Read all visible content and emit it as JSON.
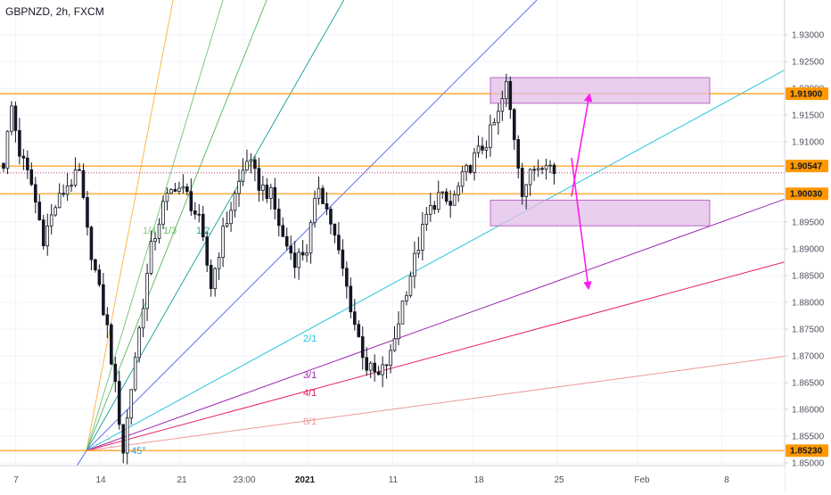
{
  "header": {
    "title": "GBPNZD, 2h, FXCM"
  },
  "colors": {
    "candle": "#131722",
    "level_line": "#ff9800",
    "badge_bg": "#ff9800",
    "zone_fill": "#e1bee7",
    "zone_stroke": "#ba68c8",
    "arrow": "#ff1cf0",
    "grid": "#f0f3fa",
    "axis": "#d1d4dc"
  },
  "chart_data": {
    "type": "candlestick",
    "symbol": "GBPNZD",
    "timeframe": "2h",
    "source": "FXCM",
    "y_range": [
      1.8495,
      1.9365
    ],
    "y_ticks": [
      "1.93000",
      "1.92500",
      "1.92000",
      "1.91500",
      "1.91000",
      "1.90500",
      "1.90000",
      "1.89500",
      "1.89000",
      "1.88500",
      "1.88000",
      "1.87500",
      "1.87000",
      "1.86500",
      "1.86000",
      "1.85500",
      "1.85000"
    ],
    "x_ticks": [
      {
        "label": "7",
        "bold": false
      },
      {
        "label": "14",
        "bold": false
      },
      {
        "label": "21",
        "bold": false
      },
      {
        "label": "23:00",
        "bold": false
      },
      {
        "label": "2021",
        "bold": true
      },
      {
        "label": "11",
        "bold": false
      },
      {
        "label": "18",
        "bold": false
      },
      {
        "label": "25",
        "bold": false
      },
      {
        "label": "Feb",
        "bold": false
      },
      {
        "label": "8",
        "bold": false
      }
    ],
    "price_path_anchors": [
      [
        0,
        1.906
      ],
      [
        2,
        1.9165
      ],
      [
        4,
        1.908
      ],
      [
        7,
        1.902
      ],
      [
        10,
        1.892
      ],
      [
        13,
        1.898
      ],
      [
        16,
        1.902
      ],
      [
        19,
        1.904
      ],
      [
        21,
        1.893
      ],
      [
        24,
        1.882
      ],
      [
        26,
        1.875
      ],
      [
        28,
        1.864
      ],
      [
        30,
        1.8523
      ],
      [
        33,
        1.87
      ],
      [
        37,
        1.89
      ],
      [
        40,
        1.898
      ],
      [
        43,
        1.902
      ],
      [
        46,
        1.9
      ],
      [
        49,
        1.895
      ],
      [
        52,
        1.883
      ],
      [
        55,
        1.893
      ],
      [
        58,
        1.9
      ],
      [
        61,
        1.907
      ],
      [
        64,
        1.902
      ],
      [
        67,
        1.9
      ],
      [
        70,
        1.892
      ],
      [
        73,
        1.888
      ],
      [
        76,
        1.89
      ],
      [
        79,
        1.902
      ],
      [
        82,
        1.895
      ],
      [
        85,
        1.886
      ],
      [
        88,
        1.876
      ],
      [
        91,
        1.868
      ],
      [
        94,
        1.866
      ],
      [
        97,
        1.87
      ],
      [
        100,
        1.88
      ],
      [
        103,
        1.888
      ],
      [
        106,
        1.896
      ],
      [
        109,
        1.9
      ],
      [
        112,
        1.898
      ],
      [
        115,
        1.903
      ],
      [
        118,
        1.907
      ],
      [
        121,
        1.91
      ],
      [
        124,
        1.915
      ],
      [
        126,
        1.9205
      ],
      [
        128,
        1.911
      ],
      [
        130,
        1.901
      ],
      [
        133,
        1.905
      ],
      [
        136,
        1.907
      ],
      [
        138,
        1.904
      ]
    ],
    "horizontal_levels": [
      {
        "price": 1.919,
        "label": "1.91900"
      },
      {
        "price": 1.90547,
        "label": "1.90547"
      },
      {
        "price": 1.9003,
        "label": "1.90030"
      },
      {
        "price": 1.8523,
        "label": "1.85230"
      }
    ],
    "gann_fan": {
      "origin_date": "14",
      "origin_price": 1.8523,
      "angle_label": "45°",
      "lines": [
        {
          "label": "1/8",
          "color": "#ffb74d",
          "show_label": false
        },
        {
          "label": "1/4",
          "color": "#81c784",
          "show_label": true
        },
        {
          "label": "1/3",
          "color": "#66bb6a",
          "show_label": true
        },
        {
          "label": "1/2",
          "color": "#26a69a",
          "show_label": true
        },
        {
          "label": "1/1",
          "color": "#5b6cf0",
          "show_label": false
        },
        {
          "label": "2/1",
          "color": "#26c6da",
          "show_label": true
        },
        {
          "label": "3/1",
          "color": "#9c27b0",
          "show_label": true
        },
        {
          "label": "4/1",
          "color": "#e91e63",
          "show_label": true
        },
        {
          "label": "8/1",
          "color": "#ef9a9a",
          "show_label": true
        }
      ]
    },
    "zones": [
      {
        "name": "upper-zone",
        "price_top": 1.922,
        "price_bottom": 1.9172
      },
      {
        "name": "lower-zone",
        "price_top": 1.8991,
        "price_bottom": 1.8943
      }
    ],
    "arrows": [
      {
        "name": "up-arrow",
        "from_price": 1.8998,
        "to_price": 1.9188
      },
      {
        "name": "down-arrow",
        "from_price": 1.907,
        "to_price": 1.8826
      }
    ]
  }
}
